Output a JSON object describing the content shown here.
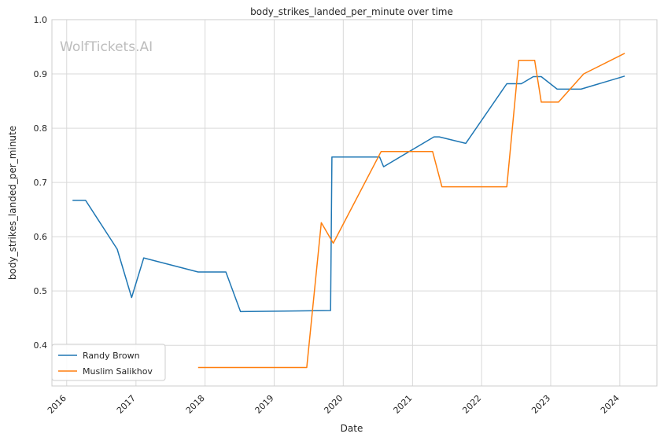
{
  "chart_data": {
    "type": "line",
    "title": "body_strikes_landed_per_minute over time",
    "xlabel": "Date",
    "ylabel": "body_strikes_landed_per_minute",
    "watermark": "WolfTickets.AI",
    "xlim": [
      "2015-10-15",
      "2024-07-15"
    ],
    "ylim": [
      0.325,
      1.0
    ],
    "x_ticks": [
      "2016",
      "2017",
      "2018",
      "2019",
      "2020",
      "2021",
      "2022",
      "2023",
      "2024"
    ],
    "y_ticks": [
      "0.4",
      "0.5",
      "0.6",
      "0.7",
      "0.8",
      "0.9",
      "1.0"
    ],
    "grid": true,
    "legend_position": "lower-left",
    "series": [
      {
        "name": "Randy Brown",
        "color": "#1f77b4",
        "points": [
          [
            "2016-02-01",
            0.667
          ],
          [
            "2016-04-10",
            0.667
          ],
          [
            "2016-09-24",
            0.577
          ],
          [
            "2016-12-09",
            0.488
          ],
          [
            "2017-02-11",
            0.561
          ],
          [
            "2017-11-25",
            0.535
          ],
          [
            "2018-04-21",
            0.535
          ],
          [
            "2018-07-07",
            0.462
          ],
          [
            "2019-10-26",
            0.464
          ],
          [
            "2019-11-02",
            0.747
          ],
          [
            "2020-07-11",
            0.747
          ],
          [
            "2020-08-01",
            0.729
          ],
          [
            "2021-04-24",
            0.784
          ],
          [
            "2021-05-22",
            0.784
          ],
          [
            "2021-10-09",
            0.772
          ],
          [
            "2022-05-14",
            0.882
          ],
          [
            "2022-07-30",
            0.882
          ],
          [
            "2022-10-01",
            0.895
          ],
          [
            "2022-11-12",
            0.895
          ],
          [
            "2023-02-04",
            0.872
          ],
          [
            "2023-06-10",
            0.872
          ],
          [
            "2024-01-27",
            0.896
          ]
        ]
      },
      {
        "name": "Muslim Salikhov",
        "color": "#ff7f0e",
        "points": [
          [
            "2017-11-25",
            0.359
          ],
          [
            "2019-06-22",
            0.359
          ],
          [
            "2019-09-07",
            0.626
          ],
          [
            "2019-11-09",
            0.588
          ],
          [
            "2020-07-19",
            0.757
          ],
          [
            "2021-04-17",
            0.757
          ],
          [
            "2021-06-05",
            0.692
          ],
          [
            "2022-05-14",
            0.692
          ],
          [
            "2022-07-16",
            0.925
          ],
          [
            "2022-10-08",
            0.925
          ],
          [
            "2022-11-12",
            0.848
          ],
          [
            "2023-02-11",
            0.848
          ],
          [
            "2023-06-24",
            0.9
          ],
          [
            "2024-01-27",
            0.938
          ]
        ]
      }
    ]
  }
}
